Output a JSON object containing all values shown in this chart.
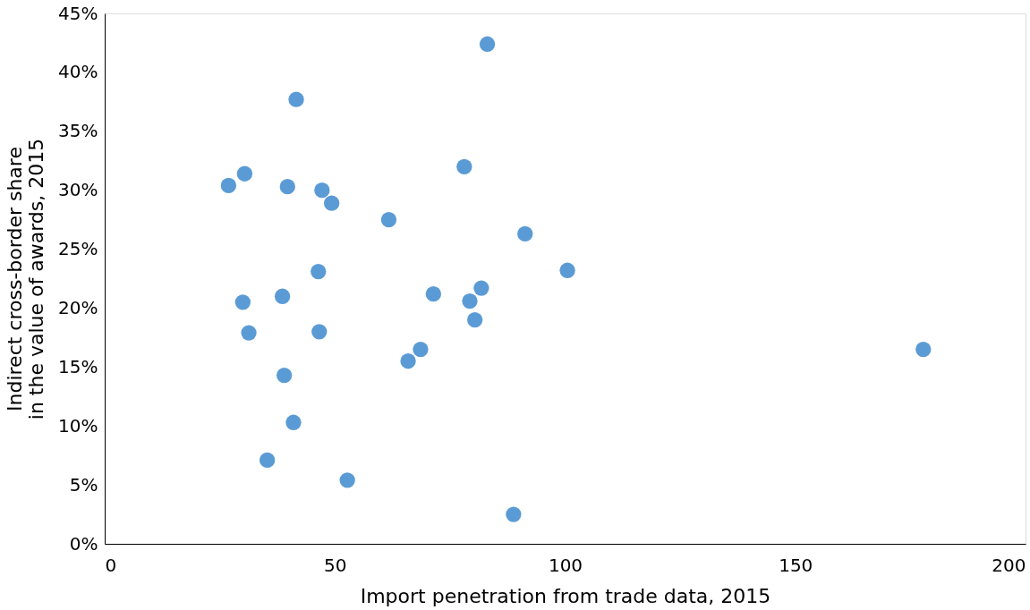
{
  "chart_data": {
    "type": "scatter",
    "xlabel": "Import penetration from trade data, 2015",
    "ylabel": "Indirect cross-border share in the value of awards, 2015",
    "x": [
      83.1,
      41.6,
      78.1,
      30.4,
      26.9,
      39.7,
      47.2,
      49.3,
      61.7,
      91.3,
      46.4,
      100.5,
      30.0,
      38.6,
      71.4,
      81.8,
      79.3,
      80.4,
      31.3,
      46.6,
      68.6,
      65.9,
      177.8,
      39.0,
      41.0,
      35.3,
      52.7,
      88.8
    ],
    "series": [
      {
        "color": "#5b9bd5",
        "values": [
          0.424,
          0.377,
          0.32,
          0.314,
          0.304,
          0.303,
          0.3,
          0.289,
          0.275,
          0.263,
          0.231,
          0.232,
          0.205,
          0.21,
          0.212,
          0.217,
          0.206,
          0.19,
          0.179,
          0.18,
          0.165,
          0.155,
          0.165,
          0.143,
          0.103,
          0.071,
          0.054,
          0.025
        ]
      }
    ],
    "xlim": [
      0,
      200
    ],
    "xticks": [
      0,
      50,
      100,
      150,
      200
    ],
    "ylim": [
      0,
      0.45
    ],
    "yticks": [
      {
        "value": 0,
        "label": "0%"
      },
      {
        "value": 0.05,
        "label": "5%"
      },
      {
        "value": 0.1,
        "label": "10%"
      },
      {
        "value": 0.15,
        "label": "15%"
      },
      {
        "value": 0.2,
        "label": "20%"
      },
      {
        "value": 0.25,
        "label": "25%"
      },
      {
        "value": 0.3,
        "label": "30%"
      },
      {
        "value": 0.35,
        "label": "35%"
      },
      {
        "value": 0.4,
        "label": "40%"
      },
      {
        "value": 0.45,
        "label": "45%"
      }
    ],
    "grid": false,
    "marker": "circle"
  }
}
